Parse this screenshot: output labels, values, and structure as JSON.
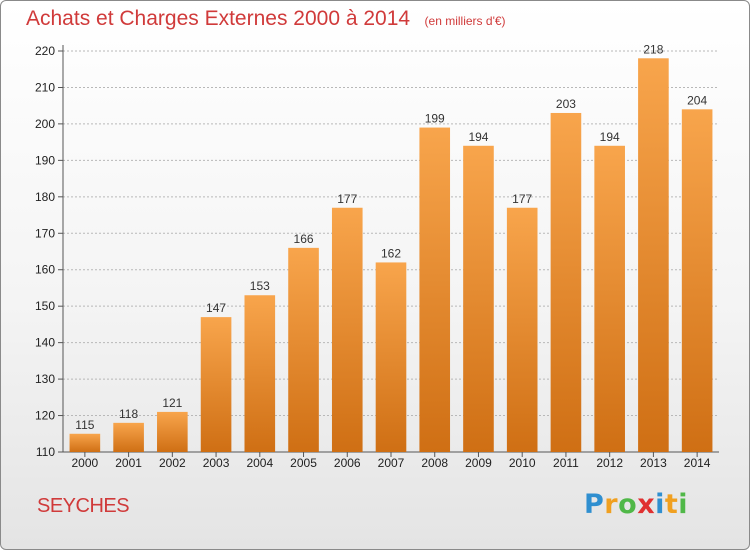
{
  "header": {
    "title": "Achats et Charges Externes 2000 à 2014",
    "subtitle": "(en milliers d'€)"
  },
  "footer": {
    "place": "SEYCHES",
    "logo_text": "Proxiti",
    "logo_letters": [
      {
        "ch": "P",
        "color": "#2f8fd0"
      },
      {
        "ch": "r",
        "color": "#f0a020"
      },
      {
        "ch": "o",
        "color": "#50b848"
      },
      {
        "ch": "x",
        "color": "#e03030"
      },
      {
        "ch": "i",
        "color": "#2f8fd0"
      },
      {
        "ch": "t",
        "color": "#f0a020"
      },
      {
        "ch": "i",
        "color": "#50b848"
      }
    ]
  },
  "colors": {
    "bar_top": "#f8a54c",
    "bar_bottom": "#cf6f14",
    "title": "#d03a3a",
    "grid": "#b8b8b8"
  },
  "chart_data": {
    "type": "bar",
    "categories": [
      "2000",
      "2001",
      "2002",
      "2003",
      "2004",
      "2005",
      "2006",
      "2007",
      "2008",
      "2009",
      "2010",
      "2011",
      "2012",
      "2013",
      "2014"
    ],
    "values": [
      115,
      118,
      121,
      147,
      153,
      166,
      177,
      162,
      199,
      194,
      177,
      203,
      194,
      218,
      204
    ],
    "title": "Achats et Charges Externes 2000 à 2014",
    "subtitle": "(en milliers d'€)",
    "ylim": [
      110,
      220
    ],
    "yticks": [
      110,
      120,
      130,
      140,
      150,
      160,
      170,
      180,
      190,
      200,
      210,
      220
    ],
    "grid": true,
    "legend": "none"
  }
}
